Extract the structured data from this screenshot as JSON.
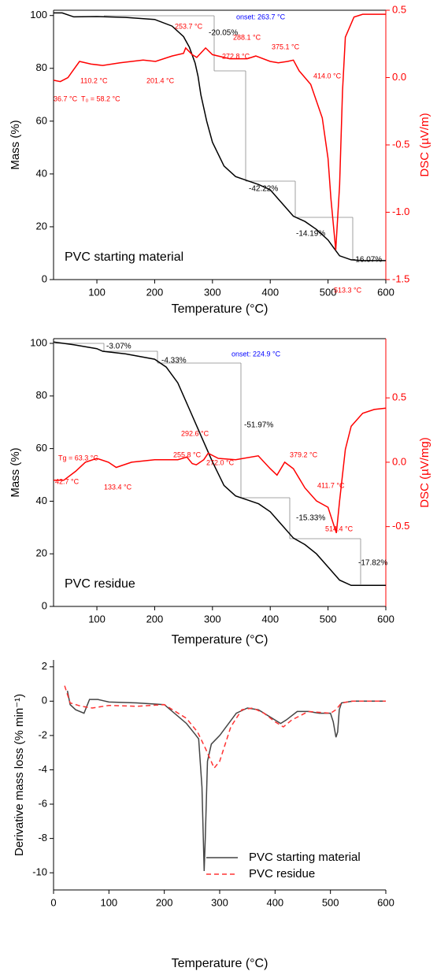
{
  "chart_data": [
    {
      "type": "line",
      "xlabel": "Temperature (°C)",
      "ylabel": "Mass (%)",
      "y2label": "DSC (µV/m)",
      "label": "PVC starting material",
      "xlim": [
        25,
        600
      ],
      "xticks": [
        100,
        200,
        300,
        400,
        500,
        600
      ],
      "ylim": [
        0,
        102
      ],
      "yticks": [
        0,
        20,
        40,
        60,
        80,
        100
      ],
      "y2lim": [
        -1.5,
        0.5
      ],
      "y2ticks": [
        -1.5,
        {
          "value": -1,
          "label": "-1.0"
        },
        -0.5,
        {
          "value": 0,
          "label": "0.0"
        },
        0.5
      ],
      "series": [
        {
          "color": "#000000",
          "axis": "y",
          "x": [
            25,
            40,
            60,
            100,
            150,
            200,
            230,
            250,
            260,
            270,
            275,
            280,
            290,
            300,
            320,
            340,
            360,
            380,
            400,
            420,
            440,
            460,
            480,
            500,
            510,
            520,
            540,
            560,
            600
          ],
          "values": [
            101,
            101,
            99.5,
            99.6,
            99.3,
            98.5,
            96,
            92,
            88,
            82,
            77,
            70,
            60,
            52,
            43,
            39,
            37.5,
            36,
            34,
            29,
            24,
            22,
            19,
            15,
            12,
            9,
            7.5,
            7.2,
            7.2
          ]
        },
        {
          "color": "#ff0000",
          "axis": "y2",
          "x": [
            25,
            36.7,
            50,
            58.2,
            70,
            90,
            110.2,
            140,
            180,
            201.4,
            230,
            250,
            253.7,
            265,
            272.8,
            288.1,
            300,
            330,
            360,
            375.1,
            400,
            414,
            430,
            440,
            450,
            470,
            490,
            500,
            505,
            513.3,
            520,
            525,
            530,
            545,
            560,
            600
          ],
          "values": [
            -0.02,
            -0.03,
            0.0,
            0.05,
            0.12,
            0.1,
            0.09,
            0.11,
            0.13,
            0.12,
            0.16,
            0.18,
            0.22,
            0.17,
            0.15,
            0.22,
            0.17,
            0.14,
            0.14,
            0.16,
            0.12,
            0.11,
            0.12,
            0.13,
            0.05,
            -0.05,
            -0.3,
            -0.6,
            -0.9,
            -1.28,
            -0.8,
            -0.1,
            0.3,
            0.45,
            0.47,
            0.47
          ]
        }
      ],
      "annotations": [
        "onset: 263.7 °C",
        "253.7 °C",
        "-20.05%",
        "288.1 °C",
        "272.8 °C",
        "375.1 °C",
        "414.0 °C",
        "110.2 °C",
        "201.4 °C",
        "36.7 °C",
        "T₀ = 58.2 °C",
        "-42.22%",
        "-14.19%",
        "-16.07%",
        "513.3 °C"
      ]
    },
    {
      "type": "line",
      "xlabel": "Temperature (°C)",
      "ylabel": "Mass (%)",
      "y2label": "DSC (µV/mg)",
      "label": "PVC residue",
      "xlim": [
        25,
        600
      ],
      "xticks": [
        100,
        200,
        300,
        400,
        500,
        600
      ],
      "ylim": [
        0,
        101.8
      ],
      "yticks": [
        0,
        20,
        40,
        60,
        80,
        100
      ],
      "y2lim": [
        -1.12,
        0.96
      ],
      "y2ticks": [
        -0.5,
        {
          "value": 0,
          "label": "0.0"
        },
        0.5
      ],
      "series": [
        {
          "color": "#000000",
          "axis": "y",
          "x": [
            25,
            60,
            100,
            110,
            150,
            200,
            220,
            240,
            260,
            280,
            300,
            320,
            340,
            360,
            380,
            400,
            420,
            440,
            460,
            480,
            500,
            520,
            540,
            560,
            580,
            600
          ],
          "values": [
            100.5,
            99.5,
            98,
            97,
            96,
            94,
            91,
            85,
            75,
            65,
            55,
            46,
            42,
            40.5,
            39,
            36,
            31,
            26,
            23.5,
            20,
            15,
            10,
            8,
            8,
            8,
            8
          ]
        },
        {
          "color": "#ff0000",
          "axis": "y2",
          "x": [
            25,
            42.7,
            63.3,
            80,
            100,
            120,
            133.4,
            160,
            200,
            240,
            255.8,
            265,
            272,
            285,
            292.6,
            310,
            340,
            379.2,
            400,
            411.7,
            425,
            440,
            460,
            480,
            500,
            514.4,
            520,
            530,
            540,
            560,
            580,
            600
          ],
          "values": [
            -0.14,
            -0.14,
            -0.07,
            0.0,
            0.03,
            0.0,
            -0.04,
            0.0,
            0.02,
            0.02,
            0.04,
            -0.01,
            -0.02,
            0.02,
            0.07,
            0.03,
            0.02,
            0.05,
            -0.05,
            -0.1,
            0.0,
            -0.05,
            -0.2,
            -0.3,
            -0.35,
            -0.55,
            -0.3,
            0.1,
            0.28,
            0.38,
            0.41,
            0.42
          ]
        }
      ],
      "annotations": [
        "-3.07%",
        "-4.33%",
        "onset: 224.9 °C",
        "-51.97%",
        "292.6 °C",
        "255.8 °C",
        "379.2 °C",
        "Tg = 63.3 °C",
        "272.0 °C",
        "411.7 °C",
        "42.7 °C",
        "133.4 °C",
        "-15.33%",
        "514.4 °C",
        "-17.82%"
      ]
    },
    {
      "type": "line",
      "xlabel": "Temperature (°C)",
      "ylabel": "Derivative mass loss (% min⁻¹)",
      "xlim": [
        0,
        600
      ],
      "xticks": [
        0,
        100,
        200,
        300,
        400,
        500,
        600
      ],
      "ylim": [
        -11,
        2.4
      ],
      "yticks": [
        -10,
        -8,
        -6,
        -4,
        -2,
        0,
        2
      ],
      "legend": "lower right",
      "series": [
        {
          "name": "PVC starting material",
          "color": "#444444",
          "dash": false,
          "axis": "y",
          "x": [
            25,
            30,
            40,
            55,
            65,
            80,
            100,
            150,
            200,
            240,
            255,
            262,
            268,
            272,
            274,
            278,
            285,
            300,
            330,
            350,
            370,
            390,
            410,
            420,
            440,
            460,
            480,
            500,
            505,
            510,
            513,
            516,
            520,
            540,
            600
          ],
          "values": [
            0.6,
            -0.2,
            -0.5,
            -0.7,
            0.1,
            0.1,
            -0.05,
            -0.1,
            -0.2,
            -1.3,
            -1.9,
            -2.2,
            -5,
            -9.9,
            -8,
            -3.5,
            -2.5,
            -2,
            -0.7,
            -0.4,
            -0.5,
            -0.9,
            -1.3,
            -1.1,
            -0.6,
            -0.6,
            -0.7,
            -0.7,
            -1.2,
            -2.1,
            -1.8,
            -0.5,
            -0.1,
            0,
            0
          ]
        },
        {
          "name": "PVC residue",
          "color": "#ff3333",
          "dash": true,
          "axis": "y",
          "x": [
            20,
            30,
            50,
            70,
            100,
            150,
            200,
            240,
            260,
            275,
            290,
            300,
            320,
            340,
            360,
            380,
            400,
            415,
            430,
            460,
            500,
            510,
            520,
            540,
            600
          ],
          "values": [
            0.9,
            -0.1,
            -0.3,
            -0.4,
            -0.25,
            -0.3,
            -0.2,
            -1.0,
            -1.8,
            -2.8,
            -3.9,
            -3.5,
            -1.5,
            -0.5,
            -0.4,
            -0.7,
            -1.2,
            -1.5,
            -1.1,
            -0.6,
            -0.7,
            -0.5,
            -0.1,
            0,
            0
          ]
        }
      ]
    }
  ]
}
